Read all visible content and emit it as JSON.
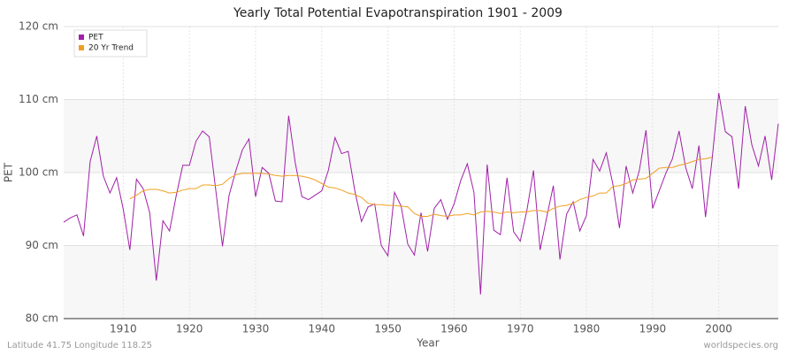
{
  "chart_data": {
    "type": "line",
    "title": "Yearly Total Potential Evapotranspiration 1901 - 2009",
    "xlabel": "Year",
    "ylabel": "PET",
    "footer_left": "Latitude 41.75 Longitude 118.25",
    "footer_right": "worldspecies.org",
    "legend": "top-left",
    "grid": true,
    "xlim": [
      1901,
      2009
    ],
    "xticks": [
      1910,
      1920,
      1930,
      1940,
      1950,
      1960,
      1970,
      1980,
      1990,
      2000
    ],
    "ylim": [
      80,
      120
    ],
    "yticks": [
      {
        "value": 80,
        "label": "80 cm"
      },
      {
        "value": 90,
        "label": "90 cm"
      },
      {
        "value": 100,
        "label": "100 cm"
      },
      {
        "value": 110,
        "label": "110 cm"
      },
      {
        "value": 120,
        "label": "120 cm"
      }
    ],
    "x": [
      1901,
      1902,
      1903,
      1904,
      1905,
      1906,
      1907,
      1908,
      1909,
      1910,
      1911,
      1912,
      1913,
      1914,
      1915,
      1916,
      1917,
      1918,
      1919,
      1920,
      1921,
      1922,
      1923,
      1924,
      1925,
      1926,
      1927,
      1928,
      1929,
      1930,
      1931,
      1932,
      1933,
      1934,
      1935,
      1936,
      1937,
      1938,
      1939,
      1940,
      1941,
      1942,
      1943,
      1944,
      1945,
      1946,
      1947,
      1948,
      1949,
      1950,
      1951,
      1952,
      1953,
      1954,
      1955,
      1956,
      1957,
      1958,
      1959,
      1960,
      1961,
      1962,
      1963,
      1964,
      1965,
      1966,
      1967,
      1968,
      1969,
      1970,
      1971,
      1972,
      1973,
      1974,
      1975,
      1976,
      1977,
      1978,
      1979,
      1980,
      1981,
      1982,
      1983,
      1984,
      1985,
      1986,
      1987,
      1988,
      1989,
      1990,
      1991,
      1992,
      1993,
      1994,
      1995,
      1996,
      1997,
      1998,
      1999,
      2000,
      2001,
      2002,
      2003,
      2004,
      2005,
      2006,
      2007,
      2008,
      2009
    ],
    "series": [
      {
        "name": "PET",
        "color": "#a020a8",
        "values": [
          93.2,
          93.8,
          94.2,
          91.3,
          101.5,
          105,
          99.5,
          97.2,
          99.3,
          95,
          89.4,
          99.1,
          97.8,
          94.5,
          85.2,
          93.4,
          92,
          96.8,
          101,
          101,
          104.3,
          105.7,
          104.9,
          97.5,
          89.9,
          96.9,
          100.2,
          103.1,
          104.6,
          96.7,
          100.7,
          99.9,
          96.1,
          96,
          107.8,
          101.3,
          96.7,
          96.3,
          96.9,
          97.5,
          100.3,
          104.8,
          102.6,
          102.9,
          97.5,
          93.3,
          95.3,
          95.7,
          90,
          88.6,
          97.3,
          95.4,
          90.2,
          88.7,
          94.5,
          89.2,
          95.1,
          96.3,
          93.6,
          95.7,
          98.9,
          101.2,
          97.3,
          83.3,
          101.1,
          92.1,
          91.5,
          99.3,
          91.9,
          90.6,
          94.8,
          100.3,
          89.4,
          93.9,
          98.2,
          88.1,
          94.3,
          96,
          92,
          94.1,
          101.8,
          100.2,
          102.7,
          98.4,
          92.4,
          100.9,
          97.2,
          100.3,
          105.8,
          95.1,
          97.5,
          99.9,
          101.9,
          105.7,
          100.7,
          97.8,
          103.7,
          93.9,
          101.9,
          110.9,
          105.6,
          104.9,
          97.8,
          109.1,
          103.8,
          100.9,
          105,
          99,
          106.7
        ]
      },
      {
        "name": "20 Yr Trend",
        "color": "#f0a020",
        "values": [
          null,
          null,
          null,
          null,
          null,
          null,
          null,
          null,
          null,
          null,
          96.4,
          96.9,
          97.5,
          97.7,
          97.7,
          97.5,
          97.2,
          97.3,
          97.6,
          97.8,
          97.8,
          98.3,
          98.3,
          98.2,
          98.4,
          99.2,
          99.7,
          99.9,
          99.9,
          99.9,
          99.9,
          99.8,
          99.6,
          99.5,
          99.6,
          99.6,
          99.5,
          99.3,
          99.0,
          98.5,
          98.0,
          97.9,
          97.6,
          97.2,
          97.0,
          96.6,
          95.8,
          95.6,
          95.6,
          95.5,
          95.5,
          95.4,
          95.3,
          94.4,
          94.0,
          94.0,
          94.3,
          94.1,
          94.0,
          94.2,
          94.2,
          94.4,
          94.2,
          94.6,
          94.7,
          94.6,
          94.4,
          94.6,
          94.5,
          94.6,
          94.6,
          94.8,
          94.8,
          94.6,
          95.1,
          95.4,
          95.5,
          95.8,
          96.3,
          96.6,
          96.8,
          97.2,
          97.2,
          98.1,
          98.2,
          98.5,
          99.0,
          99.1,
          99.2,
          99.9,
          100.6,
          100.7,
          100.7,
          101.0,
          101.2,
          101.5,
          101.8,
          101.9,
          102.1,
          null,
          null,
          null,
          null,
          null,
          null,
          null,
          null,
          null,
          null
        ]
      }
    ]
  }
}
